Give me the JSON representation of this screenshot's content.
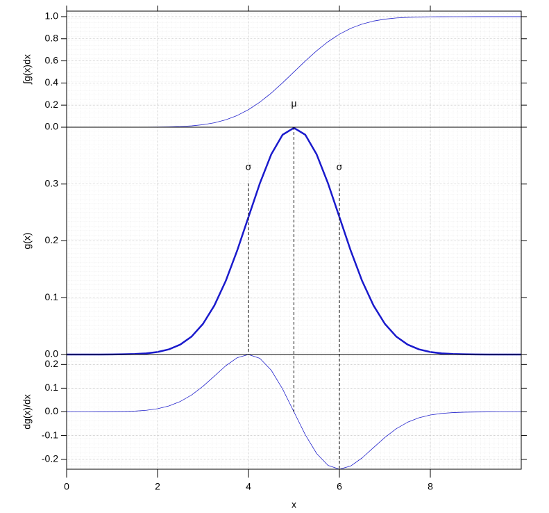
{
  "chart_data": [
    {
      "type": "line",
      "ylabel": "∫g(x)dx",
      "x": [
        0,
        0.25,
        0.5,
        0.75,
        1,
        1.25,
        1.5,
        1.75,
        2,
        2.25,
        2.5,
        2.75,
        3,
        3.25,
        3.5,
        3.75,
        4,
        4.25,
        4.5,
        4.75,
        5,
        5.25,
        5.5,
        5.75,
        6,
        6.25,
        6.5,
        6.75,
        7,
        7.25,
        7.5,
        7.75,
        8,
        8.25,
        8.5,
        8.75,
        9,
        9.25,
        9.5,
        9.75,
        10
      ],
      "series": [
        {
          "name": "∫g(x)dx",
          "color": "#2222cc",
          "linewidth": 0.8,
          "values": [
            0,
            0,
            0,
            0,
            0,
            0.0001,
            0.0002,
            0.0006,
            0.0013,
            0.003,
            0.0062,
            0.0122,
            0.0228,
            0.0401,
            0.0668,
            0.1056,
            0.1587,
            0.2266,
            0.3085,
            0.4013,
            0.5,
            0.5987,
            0.6915,
            0.7734,
            0.8413,
            0.8944,
            0.9332,
            0.9599,
            0.9772,
            0.9878,
            0.9938,
            0.997,
            0.9987,
            0.9994,
            0.9998,
            0.9999,
            1,
            1,
            1,
            1,
            1
          ]
        }
      ],
      "xlim": [
        0,
        10
      ],
      "ylim": [
        0,
        1.05
      ],
      "yticks": [
        {
          "value": 0,
          "label": "0.0"
        },
        {
          "value": 0.2,
          "label": "0.2"
        },
        {
          "value": 0.4,
          "label": "0.4"
        },
        {
          "value": 0.6,
          "label": "0.6"
        },
        {
          "value": 0.8,
          "label": "0.8"
        },
        {
          "value": 1,
          "label": "1.0"
        }
      ],
      "grid": true
    },
    {
      "type": "line",
      "ylabel": "g(x)",
      "x": [
        0,
        0.25,
        0.5,
        0.75,
        1,
        1.25,
        1.5,
        1.75,
        2,
        2.25,
        2.5,
        2.75,
        3,
        3.25,
        3.5,
        3.75,
        4,
        4.25,
        4.5,
        4.75,
        5,
        5.25,
        5.5,
        5.75,
        6,
        6.25,
        6.5,
        6.75,
        7,
        7.25,
        7.5,
        7.75,
        8,
        8.25,
        8.5,
        8.75,
        9,
        9.25,
        9.5,
        9.75,
        10
      ],
      "series": [
        {
          "name": "g(x)",
          "color": "#1a1acc",
          "linewidth": 2.5,
          "values": [
            0,
            0,
            0,
            0,
            0.0001,
            0.0004,
            0.0009,
            0.002,
            0.0044,
            0.0091,
            0.0175,
            0.0317,
            0.054,
            0.0863,
            0.1295,
            0.1826,
            0.242,
            0.3011,
            0.3521,
            0.3867,
            0.3989,
            0.3867,
            0.3521,
            0.3011,
            0.242,
            0.1826,
            0.1295,
            0.0863,
            0.054,
            0.0317,
            0.0175,
            0.0091,
            0.0044,
            0.002,
            0.0009,
            0.0004,
            0.0001,
            0,
            0,
            0,
            0
          ]
        }
      ],
      "xlim": [
        0,
        10
      ],
      "ylim": [
        0,
        0.4
      ],
      "yticks": [
        {
          "value": 0,
          "label": "0.0"
        },
        0.1,
        0.2,
        0.3
      ],
      "annotations": [
        {
          "text": "μ",
          "x": 5
        },
        {
          "text": "σ",
          "x": 4
        },
        {
          "text": "σ",
          "x": 6
        }
      ],
      "grid": true
    },
    {
      "type": "line",
      "ylabel": "dg(x)/dx",
      "xlabel": "x",
      "x": [
        0,
        0.25,
        0.5,
        0.75,
        1,
        1.25,
        1.5,
        1.75,
        2,
        2.25,
        2.5,
        2.75,
        3,
        3.25,
        3.5,
        3.75,
        4,
        4.25,
        4.5,
        4.75,
        5,
        5.25,
        5.5,
        5.75,
        6,
        6.25,
        6.5,
        6.75,
        7,
        7.25,
        7.5,
        7.75,
        8,
        8.25,
        8.5,
        8.75,
        9,
        9.25,
        9.5,
        9.75,
        10
      ],
      "series": [
        {
          "name": "dg(x)/dx",
          "color": "#2222cc",
          "linewidth": 0.8,
          "values": [
            0,
            0,
            0.0001,
            0.0002,
            0.0005,
            0.0013,
            0.0031,
            0.0066,
            0.0133,
            0.025,
            0.0438,
            0.0713,
            0.108,
            0.151,
            0.1943,
            0.2283,
            0.242,
            0.2258,
            0.176,
            0.0967,
            0,
            -0.0967,
            -0.176,
            -0.2258,
            -0.242,
            -0.2283,
            -0.1943,
            -0.151,
            -0.108,
            -0.0713,
            -0.0438,
            -0.025,
            -0.0133,
            -0.0066,
            -0.0031,
            -0.0013,
            -0.0005,
            -0.0002,
            -0.0001,
            0,
            0
          ]
        }
      ],
      "xlim": [
        0,
        10
      ],
      "ylim": [
        -0.242,
        0.242
      ],
      "xticks": [
        0,
        2,
        4,
        6,
        8
      ],
      "yticks": [
        -0.2,
        -0.1,
        {
          "value": 0,
          "label": "0.0"
        },
        0.1,
        0.2
      ],
      "grid": true
    }
  ]
}
